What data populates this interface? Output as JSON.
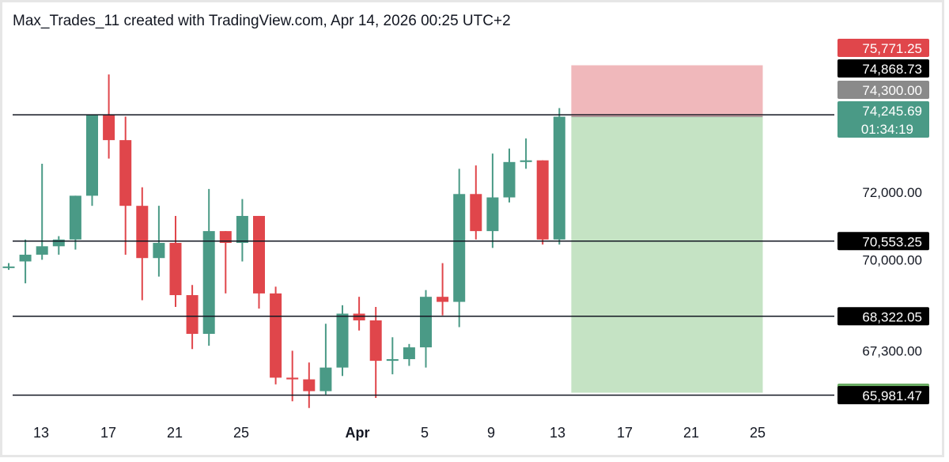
{
  "header": {
    "text": "Max_Trades_11 created with TradingView.com, Apr 14, 2026 00:25 UTC+2"
  },
  "colors": {
    "up": "#4a9a86",
    "down": "#e0464b",
    "stop_zone": "#f0b8bb",
    "target_zone": "#c5e3c4",
    "hline": "#131722",
    "axis_text": "#131722"
  },
  "chart_data": {
    "type": "candlestick",
    "x_tick_labels": [
      "13",
      "17",
      "21",
      "25",
      "Apr",
      "5",
      "9",
      "13",
      "17",
      "21",
      "25"
    ],
    "y_tick_labels": [
      {
        "value": 72000,
        "label": "72,000.00"
      },
      {
        "value": 70000,
        "label": "70,000.00"
      },
      {
        "value": 67300,
        "label": "67,300.00"
      }
    ],
    "ylim": [
      65500,
      76300
    ],
    "grid": false,
    "candles": [
      {
        "date": "Mar 11",
        "open": 69800,
        "high": 69900,
        "low": 69700,
        "close": 69800
      },
      {
        "date": "Mar 12",
        "open": 69950,
        "high": 70600,
        "low": 69300,
        "close": 70150
      },
      {
        "date": "Mar 13",
        "open": 70150,
        "high": 72850,
        "low": 70000,
        "close": 70400
      },
      {
        "date": "Mar 14",
        "open": 70400,
        "high": 70700,
        "low": 70150,
        "close": 70600
      },
      {
        "date": "Mar 15",
        "open": 70600,
        "high": 71900,
        "low": 70300,
        "close": 71900
      },
      {
        "date": "Mar 16",
        "open": 71900,
        "high": 74300,
        "low": 71600,
        "close": 74300
      },
      {
        "date": "Mar 17",
        "open": 74300,
        "high": 75500,
        "low": 73000,
        "close": 73550
      },
      {
        "date": "Mar 18",
        "open": 73550,
        "high": 74250,
        "low": 70150,
        "close": 71600
      },
      {
        "date": "Mar 19",
        "open": 71600,
        "high": 72150,
        "low": 68800,
        "close": 70050
      },
      {
        "date": "Mar 20",
        "open": 70050,
        "high": 71600,
        "low": 69500,
        "close": 70500
      },
      {
        "date": "Mar 21",
        "open": 70500,
        "high": 71300,
        "low": 68600,
        "close": 68950
      },
      {
        "date": "Mar 22",
        "open": 68950,
        "high": 69250,
        "low": 67350,
        "close": 67800
      },
      {
        "date": "Mar 23",
        "open": 67800,
        "high": 72100,
        "low": 67450,
        "close": 70850
      },
      {
        "date": "Mar 24",
        "open": 70850,
        "high": 70850,
        "low": 69000,
        "close": 70500
      },
      {
        "date": "Mar 25",
        "open": 70500,
        "high": 71800,
        "low": 69950,
        "close": 71300
      },
      {
        "date": "Mar 26",
        "open": 71300,
        "high": 71300,
        "low": 68550,
        "close": 69000
      },
      {
        "date": "Mar 27",
        "open": 69000,
        "high": 69200,
        "low": 66300,
        "close": 66500
      },
      {
        "date": "Mar 28",
        "open": 66500,
        "high": 67300,
        "low": 65800,
        "close": 66450
      },
      {
        "date": "Mar 29",
        "open": 66450,
        "high": 66950,
        "low": 65600,
        "close": 66100
      },
      {
        "date": "Mar 30",
        "open": 66100,
        "high": 68100,
        "low": 66000,
        "close": 66800
      },
      {
        "date": "Mar 31",
        "open": 66800,
        "high": 68650,
        "low": 66550,
        "close": 68400
      },
      {
        "date": "Apr 1",
        "open": 68400,
        "high": 68900,
        "low": 67900,
        "close": 68200
      },
      {
        "date": "Apr 2",
        "open": 68200,
        "high": 68600,
        "low": 65900,
        "close": 67000
      },
      {
        "date": "Apr 3",
        "open": 67000,
        "high": 67700,
        "low": 66600,
        "close": 67050
      },
      {
        "date": "Apr 4",
        "open": 67050,
        "high": 67500,
        "low": 66850,
        "close": 67400
      },
      {
        "date": "Apr 5",
        "open": 67400,
        "high": 69100,
        "low": 66800,
        "close": 68900
      },
      {
        "date": "Apr 6",
        "open": 68900,
        "high": 69900,
        "low": 68350,
        "close": 68750
      },
      {
        "date": "Apr 7",
        "open": 68750,
        "high": 72700,
        "low": 68000,
        "close": 71950
      },
      {
        "date": "Apr 8",
        "open": 71950,
        "high": 72800,
        "low": 70600,
        "close": 70850
      },
      {
        "date": "Apr 9",
        "open": 70850,
        "high": 73150,
        "low": 70350,
        "close": 71850
      },
      {
        "date": "Apr 10",
        "open": 71850,
        "high": 73300,
        "low": 71700,
        "close": 72900
      },
      {
        "date": "Apr 11",
        "open": 72900,
        "high": 73600,
        "low": 72700,
        "close": 72950
      },
      {
        "date": "Apr 12",
        "open": 72950,
        "high": 72950,
        "low": 70450,
        "close": 70600
      },
      {
        "date": "Apr 13",
        "open": 70600,
        "high": 74500,
        "low": 70450,
        "close": 74245.69
      }
    ],
    "horizontal_lines": [
      74300,
      70553.25,
      68322.05,
      65981.47
    ],
    "position_tool": {
      "side": "short",
      "entry": 74245.69,
      "stop": 75771.25,
      "target": 66053.38,
      "from": "Apr 14",
      "to": "Apr 25"
    },
    "price_labels": [
      {
        "text": "75,771.25",
        "value": 75771.25,
        "bg": "#e0464b",
        "fg": "#ffffff"
      },
      {
        "text": "74,868.73",
        "value": 74868.73,
        "bg": "#000000",
        "fg": "#ffffff"
      },
      {
        "text": "74,300.00",
        "value": 74300,
        "bg": "#8a8a8a",
        "fg": "#ffffff"
      },
      {
        "text": "74,245.69",
        "value": 74245.69,
        "bg": "#4a9a86",
        "fg": "#ffffff",
        "subtext": "01:34:19"
      },
      {
        "text": "70,553.25",
        "value": 70553.25,
        "bg": "#000000",
        "fg": "#ffffff"
      },
      {
        "text": "68,322.05",
        "value": 68322.05,
        "bg": "#000000",
        "fg": "#ffffff"
      },
      {
        "text": "66,053.38",
        "value": 66053.38,
        "bg": "#6aab62",
        "fg": "#ffffff"
      },
      {
        "text": "65,981.47",
        "value": 65981.47,
        "bg": "#000000",
        "fg": "#ffffff"
      }
    ]
  }
}
